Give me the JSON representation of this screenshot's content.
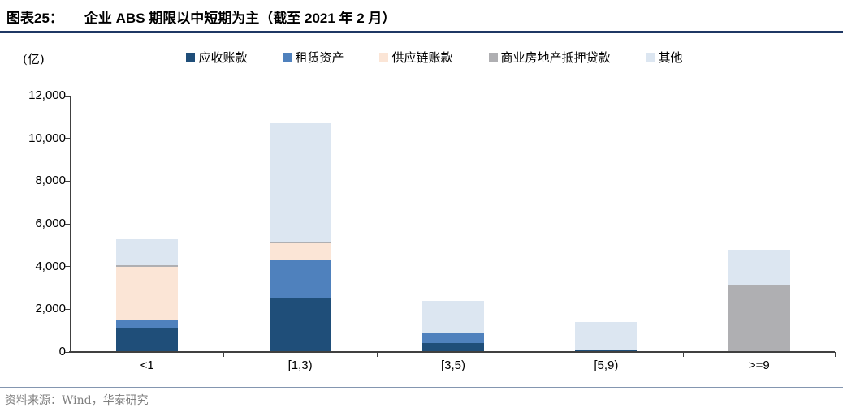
{
  "header": {
    "figure_label": "图表25：",
    "title": "企业 ABS 期限以中短期为主（截至 2021 年 2 月）"
  },
  "chart_data": {
    "type": "bar",
    "stacked": true,
    "title": "企业 ABS 期限以中短期为主（截至 2021 年 2 月）",
    "xlabel": "",
    "ylabel": "(亿)",
    "categories": [
      "<1",
      "[1,3)",
      "[3,5)",
      "[5,9)",
      ">=9"
    ],
    "series": [
      {
        "name": "应收账款",
        "color": "#1F4E79",
        "values": [
          1150,
          2500,
          420,
          60,
          0
        ]
      },
      {
        "name": "租赁资产",
        "color": "#4F81BD",
        "values": [
          350,
          1830,
          480,
          0,
          0
        ]
      },
      {
        "name": "供应链账款",
        "color": "#FBE5D6",
        "values": [
          2500,
          760,
          0,
          0,
          0
        ]
      },
      {
        "name": "商业房地产抵押贷款",
        "color": "#AFAFB2",
        "values": [
          80,
          60,
          0,
          0,
          3150
        ]
      },
      {
        "name": "其他",
        "color": "#DCE6F1",
        "values": [
          1200,
          5550,
          1500,
          1340,
          1650
        ]
      }
    ],
    "totals": [
      5280,
      10700,
      2400,
      1400,
      4800
    ],
    "ylim": [
      0,
      12000
    ],
    "ytick_step": 2000,
    "yticks": [
      "0",
      "2,000",
      "4,000",
      "6,000",
      "8,000",
      "10,000",
      "12,000"
    ],
    "grid": false,
    "legend_position": "top"
  },
  "footer": {
    "source": "资料来源：Wind，华泰研究"
  }
}
